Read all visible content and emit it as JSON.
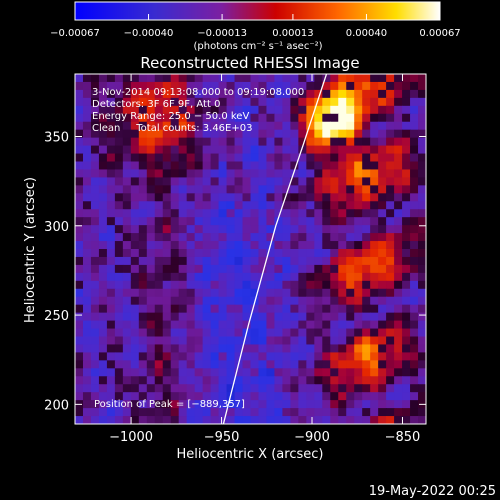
{
  "chart_data": {
    "type": "heatmap",
    "title": "Reconstructed RHESSI Image",
    "xlabel": "Heliocentric X (arcsec)",
    "ylabel": "Heliocentric Y (arcsec)",
    "xlim": [
      -1031,
      -837
    ],
    "ylim": [
      189,
      385
    ],
    "xticks": [
      -1000,
      -950,
      -900,
      -850
    ],
    "yticks": [
      200,
      250,
      300,
      350
    ],
    "xtick_labels": [
      "−1000",
      "−950",
      "−900",
      "−850"
    ],
    "ytick_labels": [
      "200",
      "250",
      "300",
      "350"
    ],
    "colorbar": {
      "min": -0.00067,
      "max": 0.00067,
      "ticks": [
        -0.00067,
        -0.0004,
        -0.00013,
        0.00013,
        0.0004,
        0.00067
      ],
      "tick_labels": [
        "−0.00067",
        "−0.00040",
        "−0.00013",
        "0.00013",
        "0.00040",
        "0.00067"
      ],
      "units_label": "(photons cm⁻² s⁻¹ asec⁻²)",
      "colors": [
        "#0000ff",
        "#7b1fa2",
        "#cc0000",
        "#ff6600",
        "#ffdd00",
        "#ffffff"
      ]
    },
    "annotations": [
      "3-Nov-2014 09:13:08.000 to 09:19:08.000",
      "Detectors: 3F 6F 9F, Att 0",
      "Energy Range: 25.0 − 50.0 keV",
      "Clean     Total counts: 3.46E+03"
    ],
    "peak": {
      "label": "Position of Peak = [−889,357]",
      "x": -889,
      "y": 357
    },
    "limb_line": [
      [
        -950,
        185
      ],
      [
        -935,
        245
      ],
      [
        -920,
        300
      ],
      [
        -905,
        345
      ],
      [
        -892,
        385
      ]
    ],
    "grid": false,
    "timestamp": "19-May-2022 00:25"
  }
}
